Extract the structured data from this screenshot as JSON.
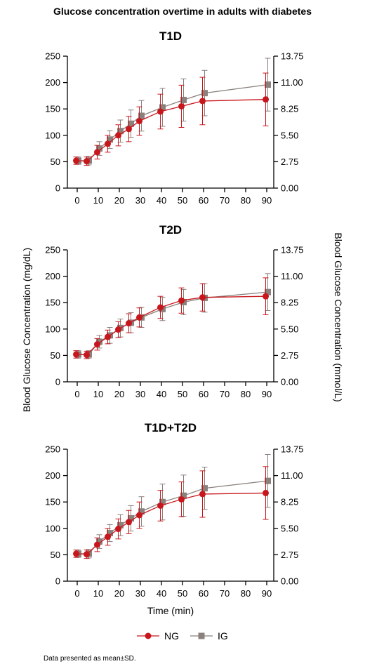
{
  "title": "Glucose concentration overtime in adults with diabetes",
  "ylabel_left": "Blood Glucose Concentration (mg/dL)",
  "ylabel_right": "Blood Glucose Concentration (mmol/L)",
  "xlabel": "Time (min)",
  "footnote": "Data presented as mean±SD.",
  "colors": {
    "NG": "#c8161d",
    "IG": "#8a807c",
    "axis": "#000000"
  },
  "legend": [
    {
      "name": "NG",
      "marker": "circle",
      "color": "#c8161d"
    },
    {
      "name": "IG",
      "marker": "square",
      "color": "#8a807c"
    }
  ],
  "chart_data": [
    {
      "type": "line",
      "title": "T1D",
      "x": [
        0,
        5,
        10,
        15,
        20,
        25,
        30,
        40,
        50,
        60,
        90
      ],
      "xticks": [
        "0",
        "10",
        "20",
        "30",
        "40",
        "50",
        "60",
        "70",
        "80",
        "90"
      ],
      "ylim": [
        0,
        250
      ],
      "yticks_left": [
        "0",
        "50",
        "100",
        "150",
        "200",
        "250"
      ],
      "y2lim": [
        0,
        13.75
      ],
      "yticks_right": [
        "0.00",
        "2.75",
        "5.50",
        "8.25",
        "11.00",
        "13.75"
      ],
      "series": [
        {
          "name": "NG",
          "values": [
            52,
            51,
            68,
            84,
            100,
            112,
            127,
            145,
            155,
            165,
            168
          ],
          "sd": [
            7,
            8,
            13,
            16,
            20,
            24,
            27,
            33,
            40,
            45,
            50
          ]
        },
        {
          "name": "IG",
          "values": [
            52,
            52,
            75,
            92,
            108,
            122,
            137,
            153,
            167,
            180,
            196
          ],
          "sd": [
            7,
            8,
            13,
            17,
            21,
            26,
            29,
            36,
            40,
            43,
            50
          ]
        }
      ]
    },
    {
      "type": "line",
      "title": "T2D",
      "x": [
        0,
        5,
        10,
        15,
        20,
        25,
        30,
        40,
        50,
        60,
        90
      ],
      "xticks": [
        "0",
        "10",
        "20",
        "30",
        "40",
        "50",
        "60",
        "70",
        "80",
        "90"
      ],
      "ylim": [
        0,
        250
      ],
      "yticks_left": [
        "0",
        "50",
        "100",
        "150",
        "200",
        "250"
      ],
      "y2lim": [
        0,
        13.75
      ],
      "yticks_right": [
        "0.00",
        "2.75",
        "5.50",
        "8.25",
        "11.00",
        "13.75"
      ],
      "series": [
        {
          "name": "NG",
          "values": [
            52,
            51,
            71,
            85,
            99,
            111,
            122,
            141,
            154,
            160,
            162
          ],
          "sd": [
            7,
            7,
            11,
            13,
            15,
            18,
            18,
            21,
            24,
            26,
            35
          ]
        },
        {
          "name": "IG",
          "values": [
            52,
            52,
            76,
            88,
            102,
            112,
            122,
            138,
            151,
            159,
            170
          ],
          "sd": [
            7,
            7,
            12,
            15,
            17,
            19,
            19,
            22,
            24,
            27,
            35
          ]
        }
      ]
    },
    {
      "type": "line",
      "title": "T1D+T2D",
      "x": [
        0,
        5,
        10,
        15,
        20,
        25,
        30,
        40,
        50,
        60,
        90
      ],
      "xticks": [
        "0",
        "10",
        "20",
        "30",
        "40",
        "50",
        "60",
        "70",
        "80",
        "90"
      ],
      "ylim": [
        0,
        250
      ],
      "yticks_left": [
        "0",
        "50",
        "100",
        "150",
        "200",
        "250"
      ],
      "y2lim": [
        0,
        13.75
      ],
      "yticks_right": [
        "0.00",
        "2.75",
        "5.50",
        "8.25",
        "11.00",
        "13.75"
      ],
      "series": [
        {
          "name": "NG",
          "values": [
            52,
            51,
            69,
            84,
            99,
            112,
            125,
            143,
            155,
            165,
            167
          ],
          "sd": [
            7,
            8,
            13,
            16,
            19,
            22,
            25,
            29,
            33,
            44,
            50
          ]
        },
        {
          "name": "IG",
          "values": [
            52,
            52,
            75,
            91,
            106,
            119,
            132,
            150,
            162,
            176,
            190
          ],
          "sd": [
            7,
            8,
            13,
            16,
            20,
            24,
            28,
            34,
            39,
            40,
            50
          ]
        }
      ]
    }
  ]
}
